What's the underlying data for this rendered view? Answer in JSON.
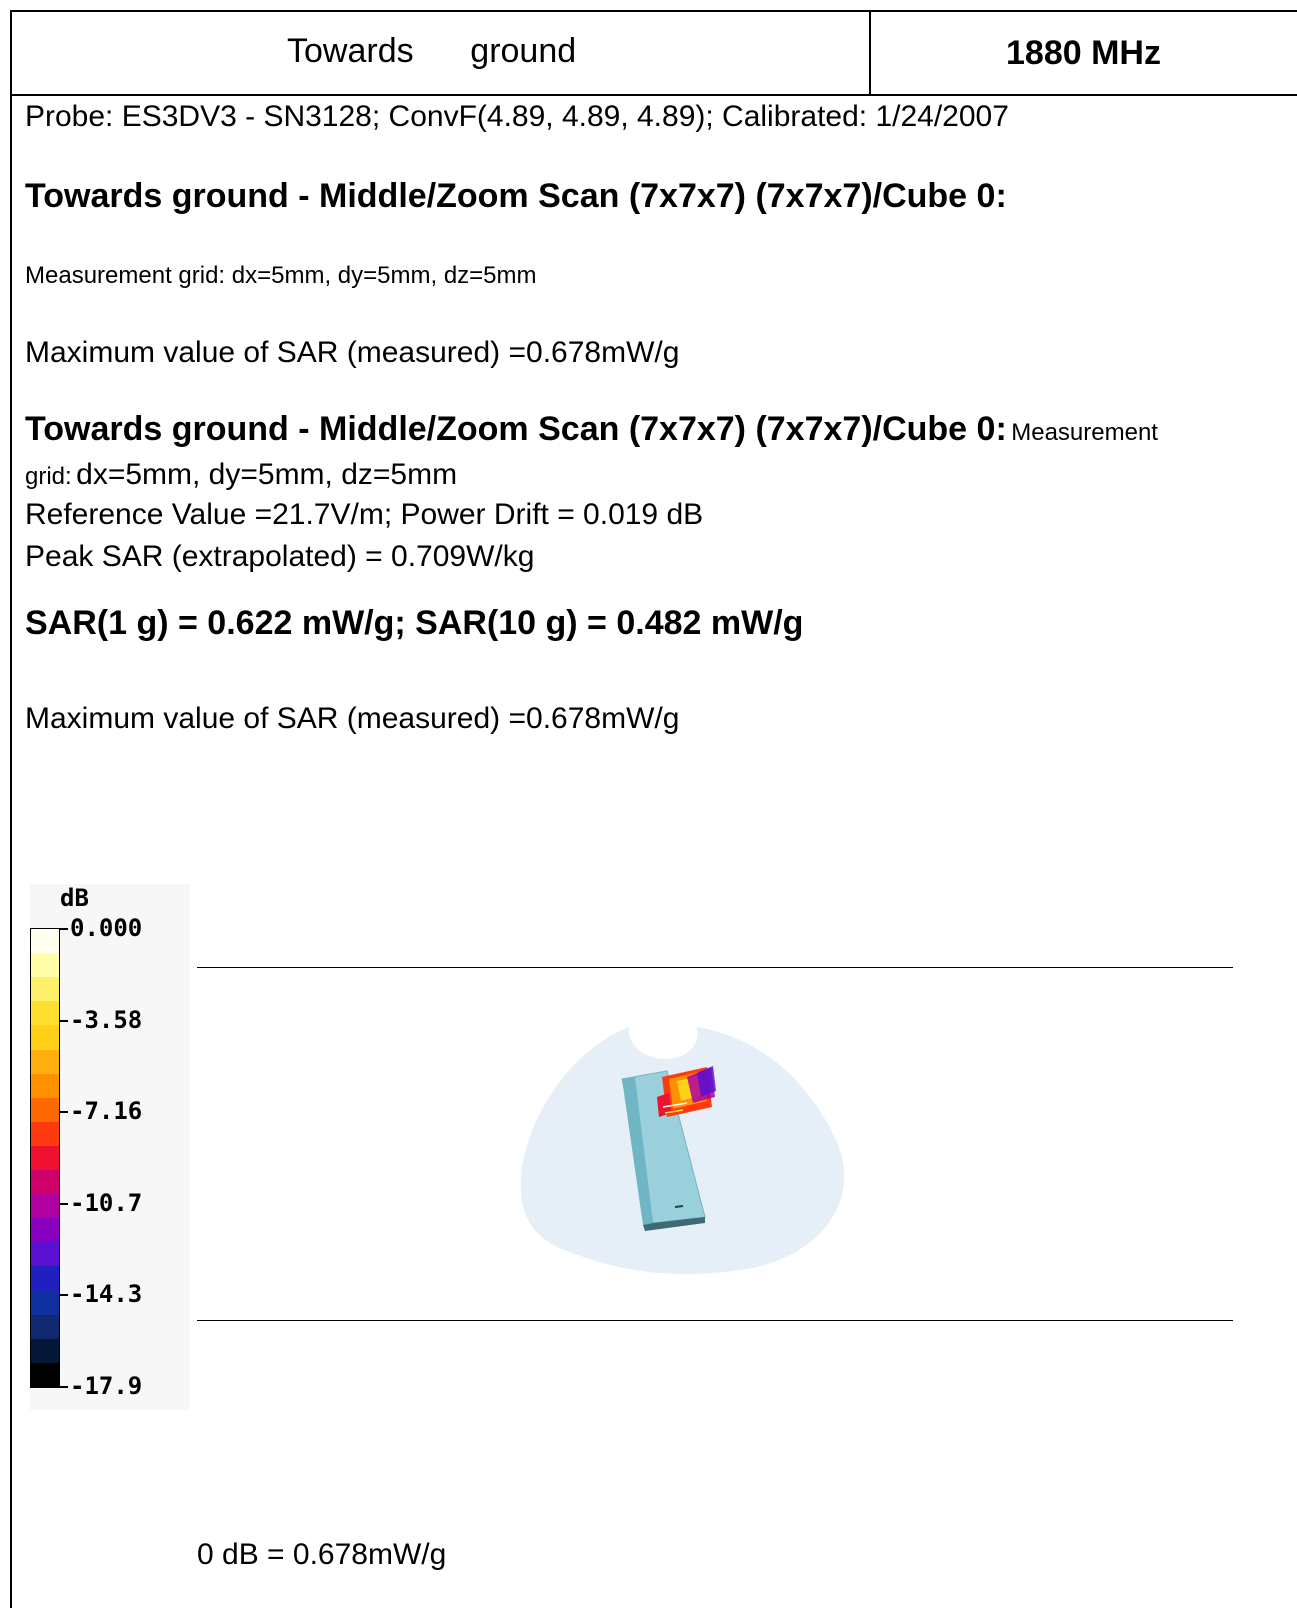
{
  "header": {
    "title": "Towards      ground",
    "frequency": "1880 MHz"
  },
  "probe_line": "Probe: ES3DV3 - SN3128; ConvF(4.89, 4.89, 4.89); Calibrated: 1/24/2007",
  "section1": {
    "heading": "Towards ground - Middle/Zoom Scan (7x7x7) (7x7x7)/Cube 0:",
    "grid": "Measurement grid: dx=5mm, dy=5mm, dz=5mm",
    "max_sar": "Maximum value of SAR (measured) =0.678mW/g"
  },
  "section2": {
    "heading": "Towards ground - Middle/Zoom Scan (7x7x7) (7x7x7)/Cube 0:",
    "grid_part1": "Measurement",
    "grid_part2_small": "grid:",
    "grid_part2": "dx=5mm, dy=5mm, dz=5mm",
    "reference": "Reference Value =21.7V/m; Power Drift = 0.019 dB",
    "peak_sar": "Peak SAR (extrapolated) = 0.709W/kg",
    "sar_result": "SAR(1 g) = 0.622 mW/g; SAR(10 g) = 0.482 mW/g",
    "max_sar": "Maximum value of SAR (measured) =0.678mW/g"
  },
  "legend": {
    "unit": "dB",
    "labels": [
      "0.000",
      "-3.58",
      "-7.16",
      "-10.7",
      "-14.3",
      "-17.9"
    ],
    "colors": [
      "#ffffee",
      "#ffffaa",
      "#fff06a",
      "#ffe030",
      "#ffd018",
      "#ffb010",
      "#ff9000",
      "#ff6a00",
      "#ff3a10",
      "#f01030",
      "#d0006a",
      "#b000a0",
      "#8a00c0",
      "#5a10d0",
      "#2020c0",
      "#1030a0",
      "#102870",
      "#061838",
      "#000000"
    ]
  },
  "footer": "0 dB = 0.678mW/g"
}
